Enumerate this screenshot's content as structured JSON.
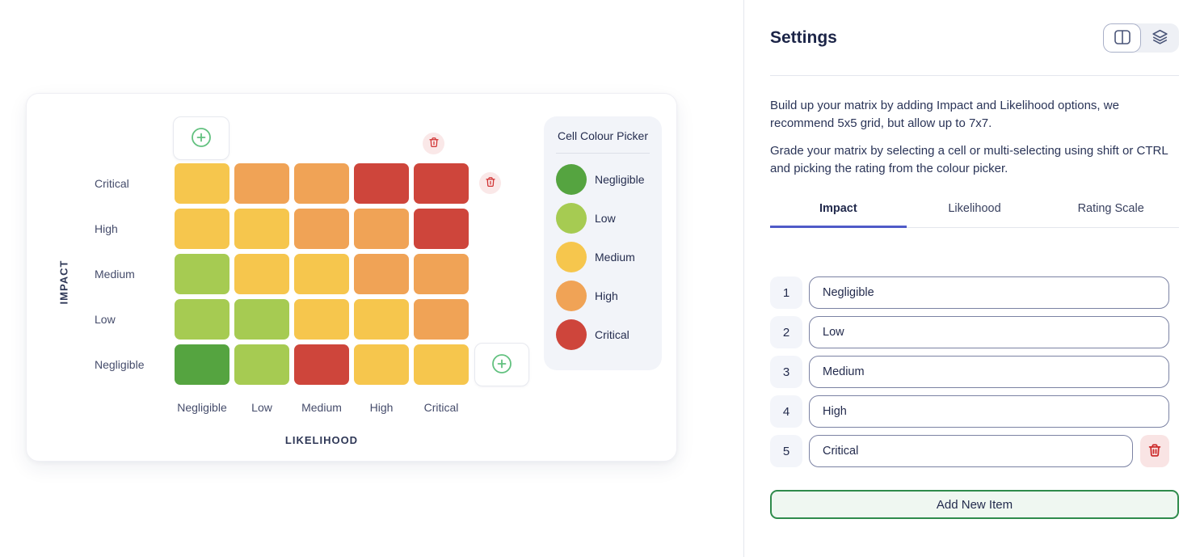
{
  "matrix": {
    "impact_axis_label": "IMPACT",
    "likelihood_axis_label": "LIKELIHOOD",
    "row_labels": [
      "Critical",
      "High",
      "Medium",
      "Low",
      "Negligible"
    ],
    "column_labels": [
      "Negligible",
      "Low",
      "Medium",
      "High",
      "Critical"
    ],
    "rating_colors": {
      "negligible": "#55A440",
      "low": "#A6CB52",
      "medium": "#F6C64D",
      "high": "#F0A356",
      "critical": "#CE453B"
    },
    "cells": [
      [
        "medium",
        "high",
        "high",
        "critical",
        "critical"
      ],
      [
        "medium",
        "medium",
        "high",
        "high",
        "critical"
      ],
      [
        "low",
        "medium",
        "medium",
        "high",
        "high"
      ],
      [
        "low",
        "low",
        "medium",
        "medium",
        "high"
      ],
      [
        "negligible",
        "low",
        "critical",
        "medium",
        "medium"
      ]
    ],
    "colour_picker": {
      "title": "Cell Colour Picker",
      "options": [
        {
          "label": "Negligible",
          "rating": "negligible"
        },
        {
          "label": "Low",
          "rating": "low"
        },
        {
          "label": "Medium",
          "rating": "medium"
        },
        {
          "label": "High",
          "rating": "high"
        },
        {
          "label": "Critical",
          "rating": "critical"
        }
      ]
    }
  },
  "settings": {
    "title": "Settings",
    "intro_paragraphs": [
      "Build up your matrix by adding Impact and Likelihood options, we recommend 5x5 grid, but allow up to 7x7.",
      "Grade your matrix by selecting a cell or multi-selecting using shift or CTRL and picking the rating from the colour picker."
    ],
    "tabs": [
      {
        "label": "Impact",
        "active": true
      },
      {
        "label": "Likelihood",
        "active": false
      },
      {
        "label": "Rating Scale",
        "active": false
      }
    ],
    "items": [
      {
        "number": "1",
        "value": "Negligible",
        "deletable": false
      },
      {
        "number": "2",
        "value": "Low",
        "deletable": false
      },
      {
        "number": "3",
        "value": "Medium",
        "deletable": false
      },
      {
        "number": "4",
        "value": "High",
        "deletable": false
      },
      {
        "number": "5",
        "value": "Critical",
        "deletable": true
      }
    ],
    "add_button_label": "Add New Item"
  },
  "colors": {
    "tab_underline": "#4F5BC8",
    "add_button_green": "#2F8B4C",
    "delete_red": "#CC2B2B",
    "plus_green": "#62C17F"
  }
}
